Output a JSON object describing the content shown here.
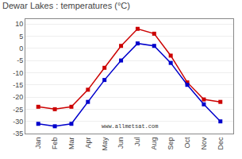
{
  "chart_data": {
    "type": "line",
    "title": "Dewar Lakes : temperatures (°C)",
    "categories": [
      "Jan",
      "Feb",
      "Mar",
      "Apr",
      "May",
      "Jun",
      "Jul",
      "Aug",
      "Sep",
      "Oct",
      "Nov",
      "Dec"
    ],
    "series": [
      {
        "color": "#cc0000",
        "values": [
          -24,
          -25,
          -24,
          -17,
          -8,
          1,
          8,
          6,
          -3,
          -14,
          -21,
          -22
        ]
      },
      {
        "color": "#0000cc",
        "values": [
          -31,
          -32,
          -31,
          -22,
          -13,
          -5,
          2,
          1,
          -6,
          -15,
          -23,
          -30
        ]
      }
    ],
    "ylim": [
      -35,
      12
    ],
    "yticks": [
      -35,
      -30,
      -25,
      -20,
      -15,
      -10,
      -5,
      0,
      5,
      10
    ],
    "grid": true,
    "marker": "square",
    "line_style": "solid",
    "annotations": [
      "www.allmetsat.com"
    ]
  }
}
